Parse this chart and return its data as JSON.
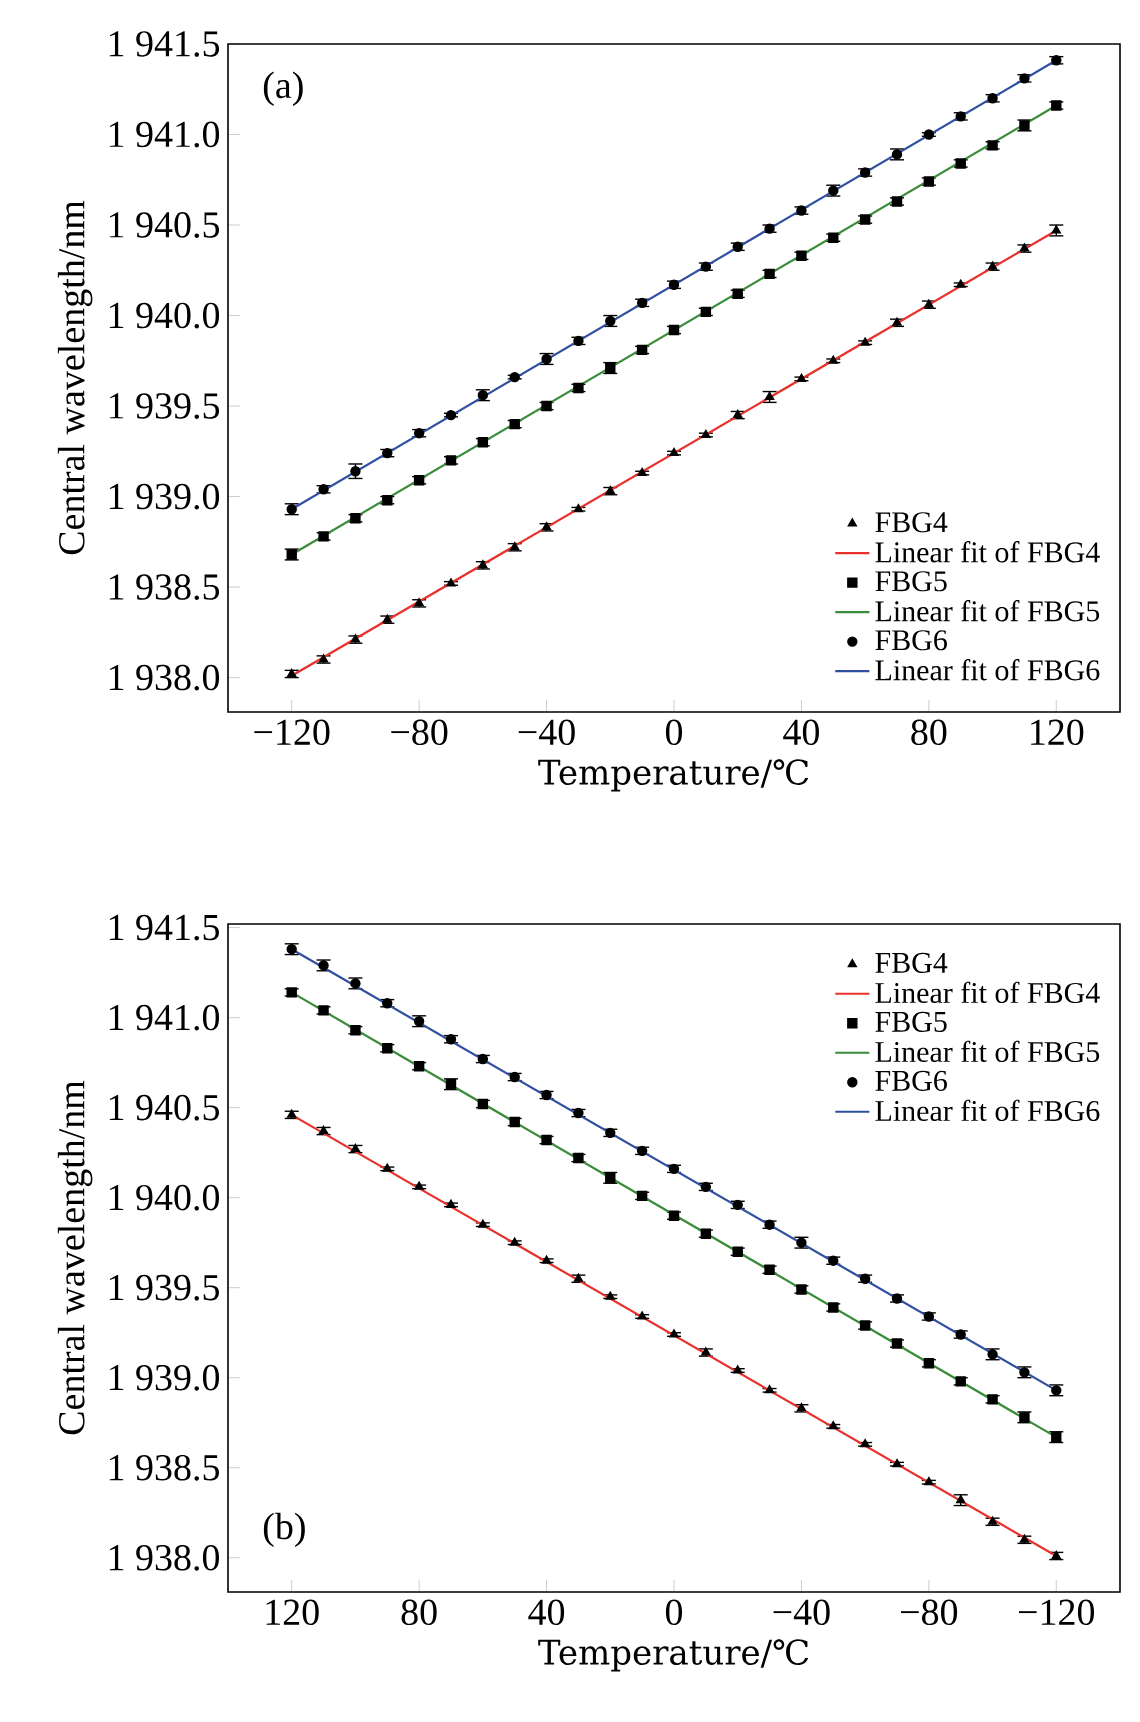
{
  "chart_data": [
    {
      "type": "scatter",
      "xlabel": "Temperature/℃",
      "ylabel": "Central wavelength/nm",
      "annotations": [
        "(a)"
      ],
      "xlim": [
        -140,
        140
      ],
      "ylim": [
        1937.81,
        1941.5
      ],
      "xticks": [
        {
          "value": -120,
          "label": "−120"
        },
        {
          "value": -80,
          "label": "−80"
        },
        {
          "value": -40,
          "label": "−40"
        },
        0,
        40,
        80,
        120
      ],
      "yticks": [
        {
          "value": 1938.0,
          "label": "1 938.0"
        },
        {
          "value": 1938.5,
          "label": "1 938.5"
        },
        {
          "value": 1939.0,
          "label": "1 939.0"
        },
        {
          "value": 1939.5,
          "label": "1 939.5"
        },
        {
          "value": 1940.0,
          "label": "1 940.0"
        },
        {
          "value": 1940.5,
          "label": "1 940.5"
        },
        {
          "value": 1941.0,
          "label": "1 941.0"
        },
        {
          "value": 1941.5,
          "label": "1 941.5"
        }
      ],
      "grid": false,
      "legend": "bottom right",
      "series": [
        {
          "name": "FBG4",
          "type": "scatter",
          "marker": "triangle",
          "color": "#000000",
          "x": [
            -120,
            -110,
            -100,
            -90,
            -80,
            -70,
            -60,
            -50,
            -40,
            -30,
            -20,
            -10,
            0,
            10,
            20,
            30,
            40,
            50,
            60,
            70,
            80,
            90,
            100,
            110,
            120
          ],
          "values": [
            1938.02,
            1938.1,
            1938.21,
            1938.32,
            1938.41,
            1938.52,
            1938.62,
            1938.72,
            1938.83,
            1938.93,
            1939.03,
            1939.13,
            1939.24,
            1939.34,
            1939.45,
            1939.55,
            1939.65,
            1939.75,
            1939.85,
            1939.96,
            1940.06,
            1940.17,
            1940.27,
            1940.37,
            1940.47
          ],
          "errors": [
            0.02,
            0.02,
            0.02,
            0.02,
            0.02,
            0.01,
            0.02,
            0.02,
            0.02,
            0.01,
            0.02,
            0.01,
            0.01,
            0.01,
            0.02,
            0.03,
            0.01,
            0.01,
            0.01,
            0.02,
            0.02,
            0.01,
            0.02,
            0.02,
            0.03
          ]
        },
        {
          "name": "Linear fit of FBG4",
          "type": "line",
          "marker": "none",
          "color": "#e8302c",
          "x": [
            -120,
            120
          ],
          "values": [
            1938.01,
            1940.47
          ]
        },
        {
          "name": "FBG5",
          "type": "scatter",
          "marker": "square",
          "color": "#000000",
          "x": [
            -120,
            -110,
            -100,
            -90,
            -80,
            -70,
            -60,
            -50,
            -40,
            -30,
            -20,
            -10,
            0,
            10,
            20,
            30,
            40,
            50,
            60,
            70,
            80,
            90,
            100,
            110,
            120
          ],
          "values": [
            1938.68,
            1938.78,
            1938.88,
            1938.98,
            1939.09,
            1939.2,
            1939.3,
            1939.4,
            1939.5,
            1939.6,
            1939.71,
            1939.81,
            1939.92,
            1940.02,
            1940.12,
            1940.23,
            1940.33,
            1940.43,
            1940.53,
            1940.63,
            1940.74,
            1940.84,
            1940.94,
            1941.05,
            1941.16
          ],
          "errors": [
            0.03,
            0.02,
            0.02,
            0.02,
            0.02,
            0.02,
            0.02,
            0.02,
            0.02,
            0.02,
            0.03,
            0.02,
            0.02,
            0.02,
            0.02,
            0.02,
            0.02,
            0.02,
            0.02,
            0.02,
            0.02,
            0.02,
            0.02,
            0.03,
            0.02
          ]
        },
        {
          "name": "Linear fit of FBG5",
          "type": "line",
          "marker": "none",
          "color": "#3a8c3a",
          "x": [
            -120,
            120
          ],
          "values": [
            1938.68,
            1941.16
          ]
        },
        {
          "name": "FBG6",
          "type": "scatter",
          "marker": "circle",
          "color": "#000000",
          "x": [
            -120,
            -110,
            -100,
            -90,
            -80,
            -70,
            -60,
            -50,
            -40,
            -30,
            -20,
            -10,
            0,
            10,
            20,
            30,
            40,
            50,
            60,
            70,
            80,
            90,
            100,
            110,
            120
          ],
          "values": [
            1938.93,
            1939.04,
            1939.14,
            1939.24,
            1939.35,
            1939.45,
            1939.56,
            1939.66,
            1939.76,
            1939.86,
            1939.97,
            1940.07,
            1940.17,
            1940.27,
            1940.38,
            1940.48,
            1940.58,
            1940.69,
            1940.79,
            1940.89,
            1941.0,
            1941.1,
            1941.2,
            1941.31,
            1941.41
          ],
          "errors": [
            0.03,
            0.02,
            0.04,
            0.02,
            0.02,
            0.01,
            0.03,
            0.01,
            0.03,
            0.02,
            0.03,
            0.02,
            0.02,
            0.02,
            0.02,
            0.02,
            0.02,
            0.03,
            0.02,
            0.03,
            0.01,
            0.02,
            0.02,
            0.02,
            0.02
          ]
        },
        {
          "name": "Linear fit of FBG6",
          "type": "line",
          "marker": "none",
          "color": "#2f4fa0",
          "x": [
            -120,
            120
          ],
          "values": [
            1938.93,
            1941.41
          ]
        }
      ]
    },
    {
      "type": "scatter",
      "xlabel": "Temperature/℃",
      "ylabel": "Central wavelength/nm",
      "annotations": [
        "(b)"
      ],
      "xlim": [
        140,
        -140
      ],
      "ylim": [
        1937.81,
        1941.52
      ],
      "xticks": [
        120,
        80,
        40,
        0,
        {
          "value": -40,
          "label": "−40"
        },
        {
          "value": -80,
          "label": "−80"
        },
        {
          "value": -120,
          "label": "−120"
        }
      ],
      "yticks": [
        {
          "value": 1938.0,
          "label": "1 938.0"
        },
        {
          "value": 1938.5,
          "label": "1 938.5"
        },
        {
          "value": 1939.0,
          "label": "1 939.0"
        },
        {
          "value": 1939.5,
          "label": "1 939.5"
        },
        {
          "value": 1940.0,
          "label": "1 940.0"
        },
        {
          "value": 1940.5,
          "label": "1 940.5"
        },
        {
          "value": 1941.0,
          "label": "1 941.0"
        },
        {
          "value": 1941.5,
          "label": "1 941.5"
        }
      ],
      "grid": false,
      "legend": "top right",
      "series": [
        {
          "name": "FBG4",
          "type": "scatter",
          "marker": "triangle",
          "color": "#000000",
          "x": [
            120,
            110,
            100,
            90,
            80,
            70,
            60,
            50,
            40,
            30,
            20,
            10,
            0,
            -10,
            -20,
            -30,
            -40,
            -50,
            -60,
            -70,
            -80,
            -90,
            -100,
            -110,
            -120
          ],
          "values": [
            1940.46,
            1940.37,
            1940.27,
            1940.16,
            1940.06,
            1939.96,
            1939.85,
            1939.75,
            1939.65,
            1939.55,
            1939.45,
            1939.34,
            1939.24,
            1939.14,
            1939.04,
            1938.93,
            1938.83,
            1938.73,
            1938.63,
            1938.52,
            1938.42,
            1938.32,
            1938.2,
            1938.1,
            1938.01
          ],
          "errors": [
            0.02,
            0.02,
            0.02,
            0.01,
            0.01,
            0.01,
            0.01,
            0.01,
            0.01,
            0.02,
            0.01,
            0.01,
            0.01,
            0.02,
            0.01,
            0.01,
            0.02,
            0.01,
            0.01,
            0.01,
            0.01,
            0.03,
            0.02,
            0.02,
            0.02
          ]
        },
        {
          "name": "Linear fit of FBG4",
          "type": "line",
          "marker": "none",
          "color": "#e8302c",
          "x": [
            120,
            -120
          ],
          "values": [
            1940.46,
            1938.01
          ]
        },
        {
          "name": "FBG5",
          "type": "scatter",
          "marker": "square",
          "color": "#000000",
          "x": [
            120,
            110,
            100,
            90,
            80,
            70,
            60,
            50,
            40,
            30,
            20,
            10,
            0,
            -10,
            -20,
            -30,
            -40,
            -50,
            -60,
            -70,
            -80,
            -90,
            -100,
            -110,
            -120
          ],
          "values": [
            1941.14,
            1941.04,
            1940.93,
            1940.83,
            1940.73,
            1940.63,
            1940.52,
            1940.42,
            1940.32,
            1940.22,
            1940.11,
            1940.01,
            1939.9,
            1939.8,
            1939.7,
            1939.6,
            1939.49,
            1939.39,
            1939.29,
            1939.19,
            1939.08,
            1938.98,
            1938.88,
            1938.78,
            1938.67
          ],
          "errors": [
            0.02,
            0.02,
            0.02,
            0.02,
            0.02,
            0.03,
            0.02,
            0.02,
            0.02,
            0.02,
            0.03,
            0.02,
            0.02,
            0.02,
            0.02,
            0.02,
            0.02,
            0.02,
            0.02,
            0.02,
            0.02,
            0.02,
            0.02,
            0.03,
            0.03
          ]
        },
        {
          "name": "Linear fit of FBG5",
          "type": "line",
          "marker": "none",
          "color": "#3a8c3a",
          "x": [
            120,
            -120
          ],
          "values": [
            1941.14,
            1938.67
          ]
        },
        {
          "name": "FBG6",
          "type": "scatter",
          "marker": "circle",
          "color": "#000000",
          "x": [
            120,
            110,
            100,
            90,
            80,
            70,
            60,
            50,
            40,
            30,
            20,
            10,
            0,
            -10,
            -20,
            -30,
            -40,
            -50,
            -60,
            -70,
            -80,
            -90,
            -100,
            -110,
            -120
          ],
          "values": [
            1941.38,
            1941.29,
            1941.19,
            1941.08,
            1940.98,
            1940.88,
            1940.77,
            1940.67,
            1940.57,
            1940.47,
            1940.36,
            1940.26,
            1940.16,
            1940.06,
            1939.96,
            1939.85,
            1939.75,
            1939.65,
            1939.55,
            1939.44,
            1939.34,
            1939.24,
            1939.13,
            1939.03,
            1938.93
          ],
          "errors": [
            0.03,
            0.03,
            0.03,
            0.02,
            0.03,
            0.02,
            0.02,
            0.02,
            0.02,
            0.02,
            0.02,
            0.02,
            0.02,
            0.02,
            0.02,
            0.02,
            0.03,
            0.02,
            0.02,
            0.02,
            0.02,
            0.02,
            0.03,
            0.03,
            0.03
          ]
        },
        {
          "name": "Linear fit of FBG6",
          "type": "line",
          "marker": "none",
          "color": "#2f4fa0",
          "x": [
            120,
            -120
          ],
          "values": [
            1941.38,
            1938.93
          ]
        }
      ]
    }
  ]
}
